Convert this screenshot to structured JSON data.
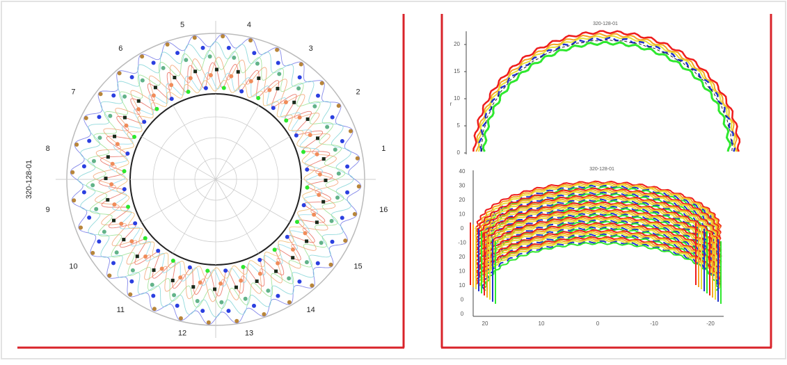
{
  "left_panel": {
    "side_label": "320-128-01",
    "sector_labels": [
      "1",
      "2",
      "3",
      "4",
      "5",
      "6",
      "7",
      "8",
      "9",
      "10",
      "11",
      "12",
      "13",
      "14",
      "15",
      "16"
    ]
  },
  "right_panel": {
    "top_plot": {
      "title": "320-128-01",
      "y_axis_label": "r",
      "y_tick_labels": [
        "0",
        "5",
        "10",
        "15",
        "20"
      ]
    },
    "bottom_plot": {
      "title": "320-128-01",
      "y_tick_labels": [
        "40",
        "30",
        "20",
        "10",
        "0",
        "-10",
        "20",
        "10",
        "10",
        "0",
        "0"
      ],
      "x_tick_labels": [
        "20",
        "10",
        "0",
        "-10",
        "-20"
      ]
    }
  }
}
